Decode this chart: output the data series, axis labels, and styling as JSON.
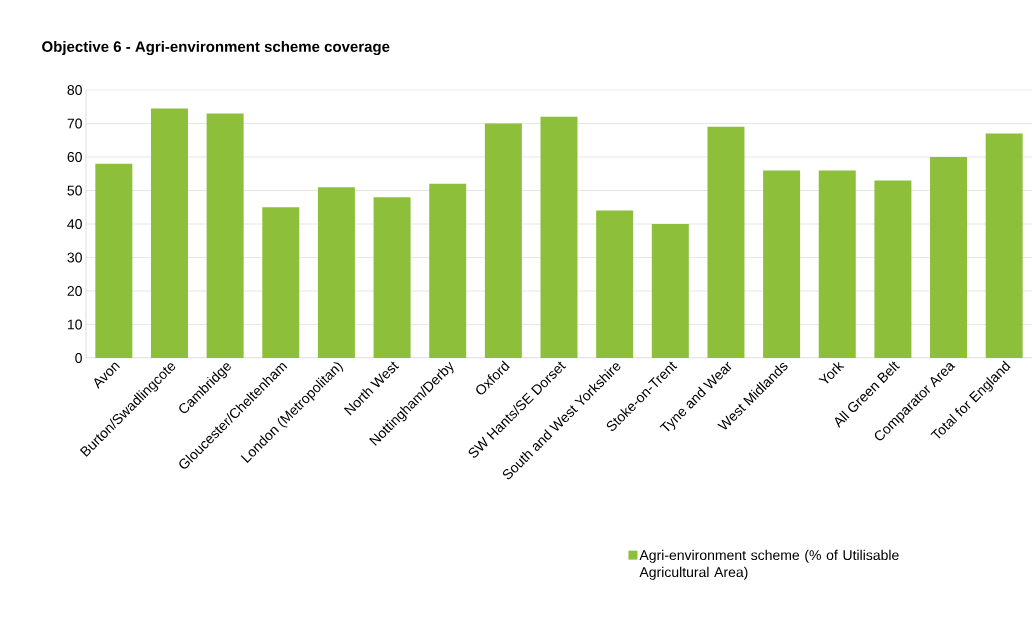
{
  "chart_data": {
    "type": "bar",
    "title": "Objective 6 - Agri-environment scheme coverage",
    "categories": [
      "Avon",
      "Burton/Swadlingcote",
      "Cambridge",
      "Gloucester/Cheltenham",
      "London (Metropolitan)",
      "North West",
      "Nottingham/Derby",
      "Oxford",
      "SW Hants/SE Dorset",
      "South and West Yorkshire",
      "Stoke-on-Trent",
      "Tyne and Wear",
      "West Midlands",
      "York",
      "All Green Belt",
      "Comparator Area",
      "Total for England"
    ],
    "series": [
      {
        "name": "Agri-environment scheme (% of Utilisable Agricultural Area)",
        "color": "#8dbf3a",
        "values": [
          58,
          74.5,
          73,
          45,
          51,
          48,
          52,
          70,
          72,
          44,
          40,
          69,
          56,
          56,
          53,
          60,
          67
        ]
      }
    ],
    "ylim": [
      0,
      80
    ],
    "yticks": [
      0,
      10,
      20,
      30,
      40,
      50,
      60,
      70,
      80
    ],
    "grid": "y",
    "legend": "bottom right"
  }
}
